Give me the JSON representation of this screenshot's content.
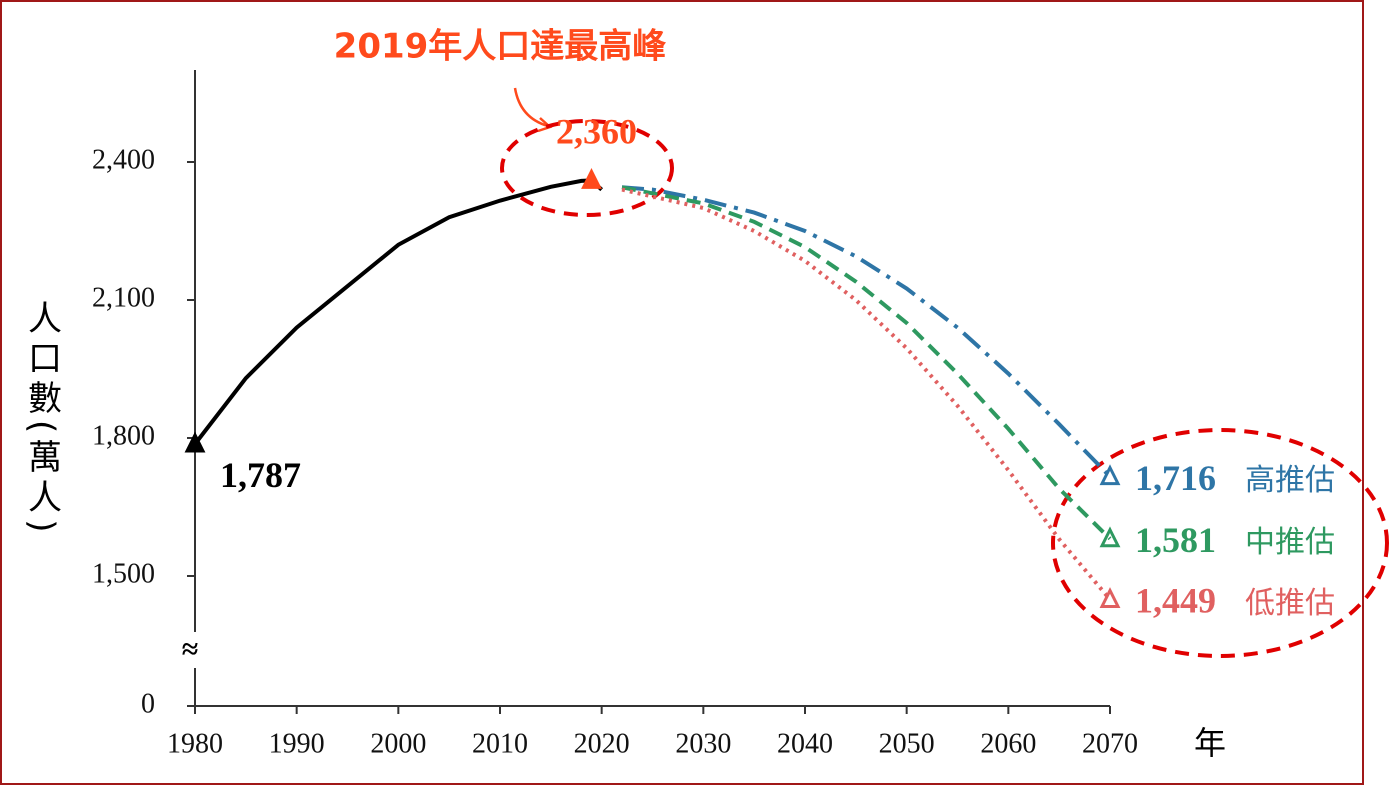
{
  "chart_data": {
    "type": "line",
    "y_label": "人口數(萬人)",
    "x_label": "年",
    "peak_note": "2019年人口達最高峰",
    "xlim": [
      1980,
      2070
    ],
    "xticks": [
      1980,
      1990,
      2000,
      2010,
      2020,
      2030,
      2040,
      2050,
      2060,
      2070
    ],
    "ylim": [
      0,
      2600
    ],
    "yticks": [
      0,
      {
        "value": 1500,
        "label": "1,500"
      },
      {
        "value": 1800,
        "label": "1,800"
      },
      {
        "value": 2100,
        "label": "2,100"
      },
      {
        "value": 2400,
        "label": "2,400"
      }
    ],
    "y_break": [
      0,
      1400
    ],
    "y_break_label": "≈",
    "series": [
      {
        "color": "#000000",
        "dash": "solid",
        "x": [
          1980,
          1985,
          1990,
          1995,
          2000,
          2005,
          2010,
          2015,
          2018,
          2019,
          2020
        ],
        "values": [
          1787,
          1930,
          2040,
          2130,
          2220,
          2280,
          2316,
          2346,
          2359,
          2360,
          2340
        ]
      },
      {
        "name": "高推估",
        "color": "#2e75a6",
        "dash": "dashdot",
        "x": [
          2022,
          2025,
          2030,
          2035,
          2040,
          2045,
          2050,
          2055,
          2060,
          2065,
          2070
        ],
        "values": [
          2345,
          2340,
          2318,
          2290,
          2250,
          2195,
          2125,
          2040,
          1940,
          1830,
          1716
        ]
      },
      {
        "name": "中推估",
        "color": "#2e9960",
        "dash": "dashed",
        "x": [
          2022,
          2030,
          2035,
          2040,
          2045,
          2050,
          2055,
          2060,
          2065,
          2070
        ],
        "values": [
          2345,
          2310,
          2270,
          2215,
          2140,
          2050,
          1940,
          1820,
          1690,
          1581
        ]
      },
      {
        "name": "低推估",
        "color": "#e06060",
        "dash": "dotted",
        "x": [
          2022,
          2030,
          2035,
          2040,
          2045,
          2050,
          2055,
          2060,
          2065,
          2070
        ],
        "values": [
          2340,
          2300,
          2250,
          2185,
          2100,
          1995,
          1870,
          1730,
          1580,
          1449
        ]
      }
    ],
    "annotations": [
      {
        "x": 1980,
        "y": 1787,
        "label": "1,787",
        "color": "#000000",
        "marker": "filled"
      },
      {
        "x": 2019,
        "y": 2360,
        "label": "2,360",
        "color": "#ff4a1c",
        "marker": "filled"
      },
      {
        "x": 2070,
        "y": 1716,
        "label": "1,716",
        "color": "#2e75a6",
        "marker": "hollow"
      },
      {
        "x": 2070,
        "y": 1581,
        "label": "1,581",
        "color": "#2e9960",
        "marker": "hollow"
      },
      {
        "x": 2070,
        "y": 1449,
        "label": "1,449",
        "color": "#e06060",
        "marker": "hollow"
      }
    ]
  }
}
